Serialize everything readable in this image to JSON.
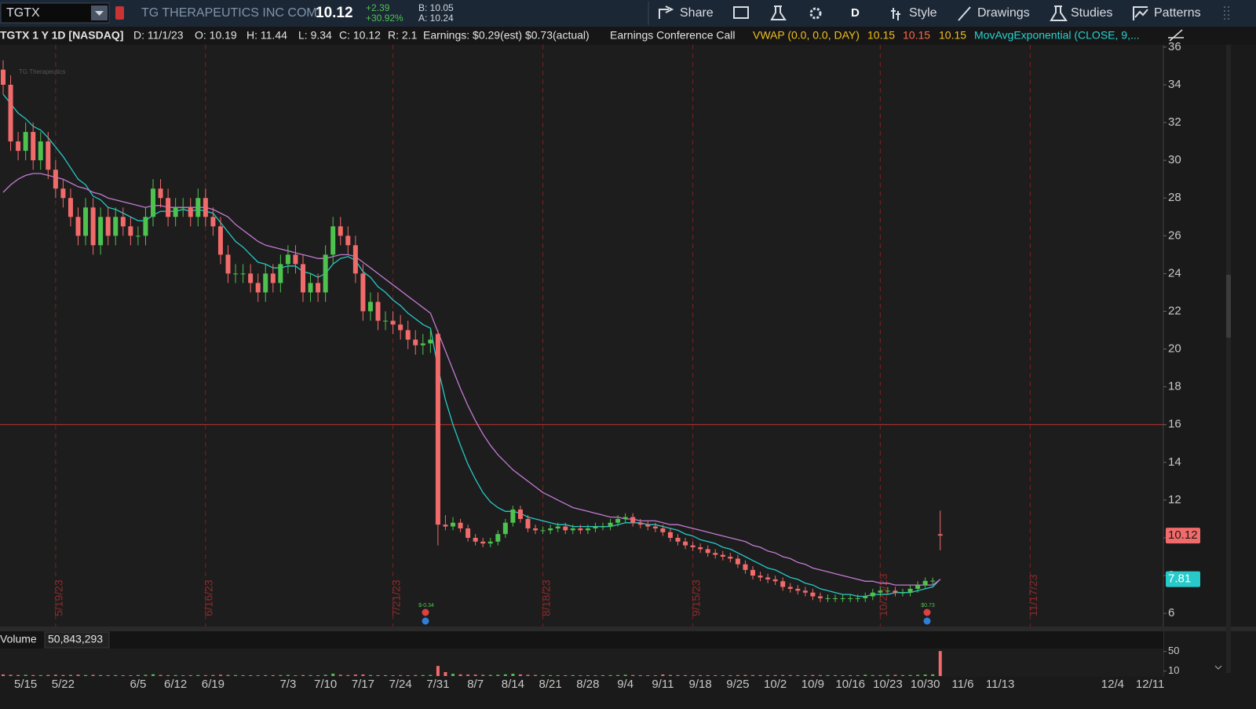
{
  "toolbar": {
    "symbol": "TGTX",
    "company": "TG THERAPEUTICS INC COM",
    "last": "10.12",
    "change": "+2.39",
    "change_percent": "+30.92%",
    "bid": "B: 10.05",
    "ask": "A: 10.24",
    "share": "Share",
    "aggregation": "D",
    "style": "Style",
    "drawings": "Drawings",
    "studies": "Studies",
    "patterns": "Patterns"
  },
  "chart_data": {
    "type": "candlestick",
    "title": "TGTX 1 Y 1D [NASDAQ]",
    "watermark": "TG Therapeutics",
    "header": {
      "date": "D: 11/1/23",
      "open": "O: 10.19",
      "high": "H: 11.44",
      "low": "L: 9.34",
      "close": "C: 10.12",
      "range": "R: 2.1",
      "earnings": "Earnings: $0.29(est) $0.73(actual)",
      "call": "Earnings Conference Call",
      "vwap": "VWAP (0.0, 0.0, DAY)",
      "vwap_values": [
        "10.15",
        "10.15",
        "10.15"
      ],
      "ema": "MovAvgExponential (CLOSE, 9,..."
    },
    "categories": [
      null,
      null,
      null,
      "5/15",
      null,
      null,
      null,
      null,
      "5/22",
      null,
      null,
      null,
      null,
      null,
      null,
      null,
      null,
      null,
      "6/5",
      null,
      null,
      null,
      null,
      "6/12",
      null,
      null,
      null,
      null,
      "6/19",
      null,
      null,
      null,
      null,
      null,
      null,
      null,
      null,
      null,
      "7/3",
      null,
      null,
      null,
      null,
      "7/10",
      null,
      null,
      null,
      null,
      "7/17",
      null,
      null,
      null,
      null,
      "7/24",
      null,
      null,
      null,
      null,
      "7/31",
      null,
      null,
      null,
      null,
      "8/7",
      null,
      null,
      null,
      null,
      "8/14",
      null,
      null,
      null,
      null,
      "8/21",
      null,
      null,
      null,
      null,
      "8/28",
      null,
      null,
      null,
      null,
      "9/4",
      null,
      null,
      null,
      null,
      "9/11",
      null,
      null,
      null,
      null,
      "9/18",
      null,
      null,
      null,
      null,
      "9/25",
      null,
      null,
      null,
      null,
      "10/2",
      null,
      null,
      null,
      null,
      "10/9",
      null,
      null,
      null,
      null,
      "10/16",
      null,
      null,
      null,
      null,
      "10/23",
      null,
      null,
      null,
      null,
      "10/30",
      null,
      null,
      null,
      null,
      "11/6",
      null,
      null,
      null,
      null,
      "11/13",
      null,
      null,
      null,
      null,
      null,
      null,
      null,
      null,
      null,
      null,
      null,
      null,
      null,
      null,
      "12/4",
      null,
      null,
      null,
      null,
      "12/11",
      null,
      null
    ],
    "open": [
      34.8,
      34.0,
      31.0,
      30.5,
      31.5,
      30.0,
      31.0,
      29.5,
      28.5,
      28.0,
      27.0,
      26.0,
      27.5,
      25.5,
      27.0,
      26.0,
      27.0,
      26.5,
      26.0,
      26.0,
      27.0,
      28.5,
      28.0,
      27.0,
      27.5,
      27.5,
      27.0,
      28.0,
      27.0,
      26.5,
      25.0,
      24.0,
      24.0,
      24.0,
      23.5,
      23.0,
      24.0,
      23.5,
      24.5,
      25.0,
      24.5,
      23.0,
      23.5,
      23.0,
      25.0,
      26.5,
      26.0,
      25.5,
      24.0,
      22.0,
      22.5,
      21.5,
      21.5,
      21.3,
      21.0,
      20.5,
      20.2,
      20.3,
      20.8,
      10.7,
      10.6,
      10.8,
      10.5,
      10.0,
      9.8,
      9.7,
      9.8,
      10.2,
      10.8,
      11.5,
      11.0,
      10.5,
      10.4,
      10.4,
      10.5,
      10.6,
      10.4,
      10.5,
      10.4,
      10.5,
      10.6,
      10.6,
      10.8,
      11.0,
      11.1,
      10.8,
      10.7,
      10.6,
      10.5,
      10.3,
      10.0,
      9.8,
      9.6,
      9.5,
      9.4,
      9.2,
      9.1,
      9.0,
      8.9,
      8.6,
      8.3,
      8.0,
      7.9,
      7.8,
      7.7,
      7.4,
      7.3,
      7.2,
      7.1,
      6.9,
      6.8,
      6.8,
      6.8,
      6.8,
      6.8,
      6.8,
      6.9,
      7.1,
      7.2,
      7.2,
      7.1,
      7.1,
      7.3,
      7.5,
      7.72,
      10.19,
      null,
      null,
      null,
      null,
      null,
      null,
      null,
      null,
      null,
      null,
      null,
      null,
      null,
      null,
      null,
      null,
      null,
      null,
      null,
      null,
      null,
      null,
      null,
      null,
      null,
      null,
      null,
      null,
      null,
      null
    ],
    "high": [
      35.3,
      34.5,
      31.5,
      32.0,
      32.0,
      31.5,
      31.5,
      30.0,
      29.0,
      28.5,
      27.5,
      28.0,
      28.0,
      27.5,
      27.5,
      27.5,
      27.5,
      27.0,
      26.5,
      27.5,
      29.0,
      29.0,
      28.5,
      28.0,
      28.0,
      28.0,
      28.5,
      28.5,
      27.5,
      27.0,
      25.5,
      24.5,
      24.5,
      24.5,
      24.0,
      24.5,
      24.5,
      25.0,
      25.5,
      25.5,
      25.0,
      24.0,
      24.0,
      25.5,
      27.0,
      27.0,
      26.5,
      26.0,
      24.5,
      23.0,
      23.0,
      22.0,
      22.0,
      21.8,
      21.5,
      21.0,
      20.8,
      21.0,
      21.0,
      11.2,
      11.1,
      11.0,
      10.7,
      10.2,
      10.0,
      10.0,
      10.4,
      11.0,
      11.7,
      11.7,
      11.2,
      10.7,
      10.6,
      10.7,
      10.8,
      10.8,
      10.7,
      10.7,
      10.7,
      10.8,
      10.8,
      11.0,
      11.2,
      11.3,
      11.3,
      11.0,
      10.9,
      10.8,
      10.7,
      10.5,
      10.2,
      10.0,
      9.8,
      9.7,
      9.6,
      9.4,
      9.3,
      9.2,
      9.1,
      8.8,
      8.5,
      8.2,
      8.1,
      8.0,
      7.9,
      7.6,
      7.5,
      7.4,
      7.3,
      7.1,
      7.0,
      7.0,
      7.0,
      7.0,
      7.0,
      7.1,
      7.3,
      7.4,
      7.4,
      7.4,
      7.3,
      7.5,
      7.7,
      7.9,
      7.9,
      11.44,
      null,
      null,
      null,
      null,
      null,
      null,
      null,
      null,
      null,
      null,
      null,
      null,
      null,
      null,
      null,
      null,
      null,
      null,
      null,
      null,
      null,
      null,
      null,
      null,
      null,
      null,
      null,
      null,
      null,
      null
    ],
    "low": [
      33.5,
      30.5,
      30.0,
      30.0,
      29.5,
      29.5,
      29.0,
      28.0,
      27.5,
      26.5,
      25.5,
      25.5,
      25.0,
      25.0,
      25.5,
      25.5,
      26.0,
      25.5,
      25.5,
      25.5,
      26.5,
      27.5,
      26.5,
      26.5,
      27.0,
      26.5,
      26.5,
      26.5,
      26.0,
      24.5,
      23.5,
      23.5,
      23.5,
      23.0,
      22.5,
      22.5,
      23.0,
      23.0,
      24.0,
      24.0,
      22.5,
      22.5,
      22.5,
      22.5,
      24.5,
      25.5,
      25.0,
      23.5,
      21.5,
      21.5,
      21.0,
      21.0,
      20.8,
      20.5,
      20.0,
      19.7,
      19.7,
      19.8,
      9.6,
      10.4,
      10.4,
      10.3,
      9.8,
      9.6,
      9.5,
      9.5,
      9.6,
      10.0,
      10.6,
      10.8,
      10.3,
      10.2,
      10.2,
      10.2,
      10.3,
      10.2,
      10.2,
      10.2,
      10.2,
      10.3,
      10.4,
      10.4,
      10.6,
      10.8,
      10.6,
      10.5,
      10.4,
      10.3,
      10.1,
      9.8,
      9.6,
      9.4,
      9.3,
      9.2,
      9.0,
      8.9,
      8.8,
      8.7,
      8.4,
      8.1,
      7.8,
      7.7,
      7.6,
      7.5,
      7.2,
      7.1,
      7.0,
      6.9,
      6.7,
      6.6,
      6.6,
      6.6,
      6.6,
      6.6,
      6.6,
      6.6,
      6.7,
      6.9,
      7.0,
      6.9,
      6.9,
      6.9,
      7.1,
      7.3,
      7.5,
      9.34,
      null,
      null,
      null,
      null,
      null,
      null,
      null,
      null,
      null,
      null,
      null,
      null,
      null,
      null,
      null,
      null,
      null,
      null,
      null,
      null,
      null,
      null,
      null,
      null,
      null,
      null,
      null,
      null,
      null,
      null
    ],
    "close": [
      34.0,
      31.0,
      30.5,
      31.5,
      30.0,
      31.0,
      29.5,
      28.5,
      28.0,
      27.0,
      26.0,
      27.5,
      25.5,
      27.0,
      26.0,
      27.0,
      26.5,
      26.0,
      26.0,
      27.0,
      28.5,
      28.0,
      27.0,
      27.5,
      27.5,
      27.0,
      28.0,
      27.0,
      26.5,
      25.0,
      24.0,
      24.0,
      24.0,
      23.5,
      23.0,
      24.0,
      23.5,
      24.5,
      25.0,
      24.5,
      23.0,
      23.5,
      23.0,
      25.0,
      26.5,
      26.0,
      25.5,
      24.0,
      22.0,
      22.5,
      21.5,
      21.5,
      21.3,
      21.0,
      20.5,
      20.2,
      20.3,
      20.5,
      10.7,
      10.6,
      10.8,
      10.5,
      10.0,
      9.8,
      9.7,
      9.8,
      10.2,
      10.8,
      11.5,
      11.0,
      10.5,
      10.4,
      10.4,
      10.5,
      10.6,
      10.4,
      10.5,
      10.4,
      10.5,
      10.6,
      10.6,
      10.8,
      11.0,
      11.1,
      10.8,
      10.7,
      10.6,
      10.5,
      10.3,
      10.0,
      9.8,
      9.6,
      9.5,
      9.4,
      9.2,
      9.1,
      9.0,
      8.9,
      8.6,
      8.3,
      8.0,
      7.9,
      7.8,
      7.7,
      7.4,
      7.3,
      7.2,
      7.1,
      6.9,
      6.8,
      6.8,
      6.8,
      6.8,
      6.8,
      6.8,
      6.9,
      7.1,
      7.2,
      7.2,
      7.1,
      7.1,
      7.3,
      7.5,
      7.72,
      7.73,
      10.12,
      null,
      null,
      null,
      null,
      null,
      null,
      null,
      null,
      null,
      null,
      null,
      null,
      null,
      null,
      null,
      null,
      null,
      null,
      null,
      null,
      null,
      null,
      null,
      null,
      null,
      null,
      null,
      null,
      null,
      null
    ],
    "up_color": "#4ec24e",
    "down_color": "#f26b6b",
    "series": [
      {
        "color": "#27c9c9",
        "values": [
          33.5,
          33.0,
          32.5,
          32.2,
          31.8,
          31.6,
          31.2,
          30.7,
          30.2,
          29.6,
          29.0,
          28.7,
          28.1,
          27.9,
          27.5,
          27.4,
          27.2,
          27.0,
          26.8,
          26.8,
          27.1,
          27.3,
          27.3,
          27.3,
          27.4,
          27.3,
          27.4,
          27.3,
          27.2,
          26.7,
          26.2,
          25.7,
          25.4,
          25.0,
          24.6,
          24.5,
          24.3,
          24.3,
          24.4,
          24.4,
          24.1,
          24.0,
          23.8,
          24.0,
          24.5,
          24.8,
          24.9,
          24.7,
          24.1,
          23.8,
          23.3,
          23.0,
          22.6,
          22.3,
          21.9,
          21.6,
          21.3,
          21.1,
          19.0,
          17.3,
          16.0,
          14.9,
          13.9,
          13.1,
          12.4,
          11.9,
          11.6,
          11.4,
          11.4,
          11.3,
          11.1,
          11.0,
          10.9,
          10.8,
          10.7,
          10.7,
          10.6,
          10.6,
          10.6,
          10.6,
          10.6,
          10.6,
          10.7,
          10.8,
          10.8,
          10.8,
          10.7,
          10.7,
          10.6,
          10.5,
          10.4,
          10.2,
          10.1,
          9.9,
          9.8,
          9.7,
          9.5,
          9.4,
          9.2,
          9.0,
          8.8,
          8.6,
          8.4,
          8.3,
          8.1,
          7.9,
          7.8,
          7.6,
          7.5,
          7.3,
          7.2,
          7.1,
          7.0,
          7.0,
          6.9,
          6.9,
          7.0,
          7.0,
          7.0,
          7.1,
          7.1,
          7.1,
          7.2,
          7.3,
          7.4,
          7.81,
          null,
          null,
          null,
          null,
          null,
          null,
          null,
          null,
          null,
          null,
          null,
          null,
          null,
          null,
          null,
          null,
          null,
          null,
          null,
          null,
          null,
          null,
          null,
          null,
          null,
          null,
          null,
          null,
          null,
          null
        ]
      },
      {
        "color": "#c47ad4",
        "values": [
          28.3,
          28.7,
          29.0,
          29.2,
          29.3,
          29.3,
          29.2,
          29.1,
          29.0,
          28.8,
          28.6,
          28.5,
          28.3,
          28.2,
          28.0,
          27.9,
          27.8,
          27.7,
          27.6,
          27.5,
          27.6,
          27.6,
          27.5,
          27.5,
          27.5,
          27.5,
          27.5,
          27.5,
          27.4,
          27.2,
          27.0,
          26.6,
          26.3,
          26.0,
          25.7,
          25.5,
          25.4,
          25.3,
          25.2,
          25.1,
          25.0,
          24.9,
          24.8,
          24.8,
          24.9,
          25.0,
          25.0,
          24.9,
          24.6,
          24.3,
          24.0,
          23.7,
          23.4,
          23.1,
          22.8,
          22.5,
          22.2,
          21.9,
          20.9,
          19.9,
          18.9,
          17.9,
          17.0,
          16.2,
          15.5,
          14.9,
          14.4,
          14.0,
          13.6,
          13.3,
          13.0,
          12.7,
          12.4,
          12.2,
          12.0,
          11.8,
          11.6,
          11.5,
          11.4,
          11.3,
          11.2,
          11.1,
          11.1,
          11.0,
          11.0,
          10.9,
          10.9,
          10.9,
          10.8,
          10.7,
          10.7,
          10.6,
          10.5,
          10.4,
          10.3,
          10.2,
          10.1,
          10.0,
          9.9,
          9.8,
          9.6,
          9.5,
          9.3,
          9.2,
          9.0,
          8.9,
          8.7,
          8.6,
          8.4,
          8.3,
          8.2,
          8.1,
          8.0,
          7.9,
          7.8,
          7.7,
          7.7,
          7.6,
          7.6,
          7.5,
          7.5,
          7.5,
          7.5,
          7.5,
          7.5,
          7.8,
          null,
          null,
          null,
          null,
          null,
          null,
          null,
          null,
          null,
          null,
          null,
          null,
          null,
          null,
          null,
          null,
          null,
          null,
          null,
          null,
          null,
          null,
          null,
          null,
          null,
          null,
          null,
          null,
          null,
          null
        ]
      }
    ],
    "ylim": [
      5.3,
      36.12
    ],
    "yticks": [
      6,
      8,
      10,
      12,
      14,
      16,
      18,
      20,
      22,
      24,
      26,
      28,
      30,
      32,
      34,
      36
    ],
    "price_line": 16,
    "price_line_color": "#c43333",
    "expirations": [
      "5/19/23",
      "6/16/23",
      "7/21/23",
      "8/18/23",
      "9/15/23",
      "10/20/23",
      "11/17/23"
    ],
    "earnings": [
      "$-0.34",
      "$0.73"
    ],
    "volume": {
      "label": "Volume",
      "total": "50,843,293",
      "ylim": [
        0,
        57.6
      ],
      "yticks": [
        10,
        50
      ],
      "values": [
        3.2,
        2.5,
        2.1,
        2.4,
        2.0,
        1.8,
        2.2,
        2.6,
        2.1,
        2.3,
        2.8,
        2.0,
        2.4,
        1.9,
        1.7,
        1.8,
        1.6,
        1.5,
        2.0,
        2.4,
        3.5,
        2.2,
        1.8,
        1.9,
        1.6,
        1.7,
        2.0,
        1.8,
        2.1,
        2.6,
        2.2,
        1.9,
        1.7,
        1.6,
        1.5,
        1.8,
        1.7,
        1.9,
        2.2,
        1.5,
        2.0,
        1.8,
        1.6,
        2.4,
        4.8,
        2.6,
        2.0,
        2.9,
        3.1,
        2.0,
        1.8,
        1.7,
        1.6,
        1.8,
        1.6,
        1.9,
        2.0,
        2.2,
        20.5,
        8.0,
        4.5,
        3.3,
        3.0,
        2.8,
        2.4,
        2.2,
        2.6,
        3.4,
        4.6,
        3.2,
        2.5,
        2.1,
        1.9,
        1.8,
        1.7,
        1.6,
        1.8,
        1.5,
        1.6,
        1.5,
        1.7,
        1.8,
        2.0,
        2.6,
        2.0,
        1.7,
        1.6,
        1.5,
        3.2,
        2.1,
        1.9,
        1.8,
        1.7,
        1.8,
        1.7,
        1.6,
        1.5,
        1.6,
        2.0,
        2.2,
        1.9,
        1.8,
        1.7,
        1.8,
        2.0,
        1.9,
        1.7,
        1.6,
        2.1,
        1.9,
        1.8,
        1.7,
        1.6,
        1.7,
        1.6,
        2.6,
        1.9,
        1.8,
        2.2,
        2.3,
        1.9,
        2.0,
        2.4,
        3.0,
        3.4,
        50.843293,
        null,
        null,
        null,
        null,
        null,
        null,
        null,
        null,
        null,
        null,
        null,
        null,
        null,
        null,
        null,
        null,
        null,
        null,
        null,
        null,
        null,
        null,
        null,
        null,
        null,
        null,
        null,
        null,
        null,
        null
      ]
    }
  }
}
